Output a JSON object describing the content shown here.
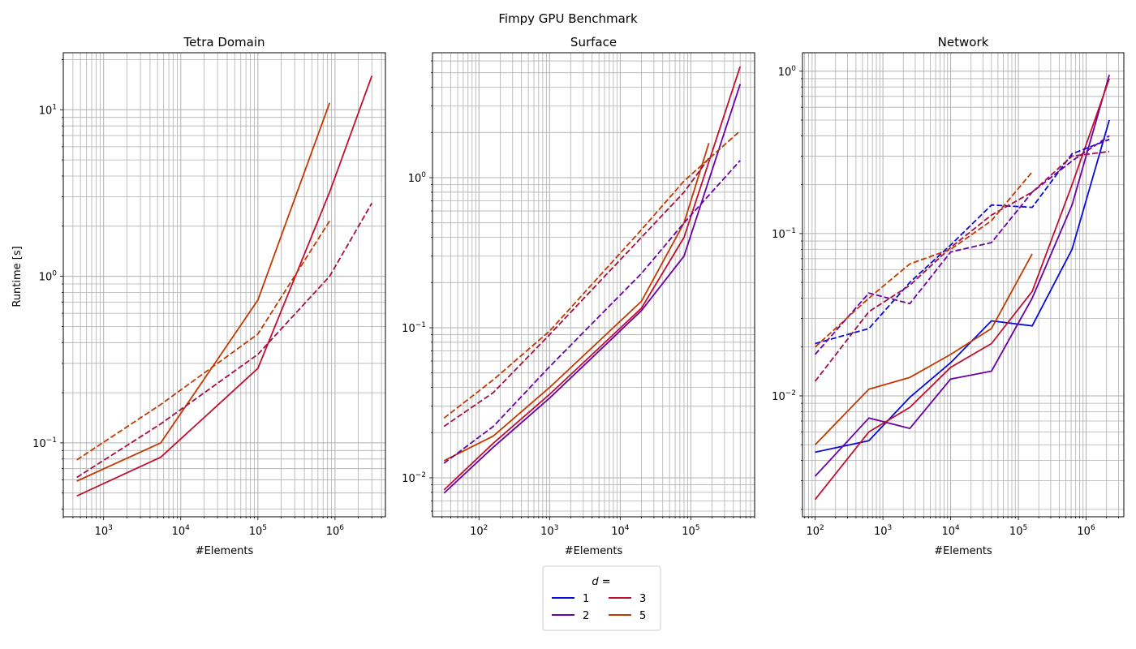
{
  "suptitle": "Fimpy GPU Benchmark",
  "ylabel": "Runtime [s]",
  "legend": {
    "title": "d =",
    "entries": [
      {
        "label": "1",
        "color": "#0b0bd6"
      },
      {
        "label": "2",
        "color": "#6a00a8"
      },
      {
        "label": "3",
        "color": "#c0102f"
      },
      {
        "label": "5",
        "color": "#c03a00"
      }
    ]
  },
  "chart_data": [
    {
      "type": "line",
      "title": "Tetra Domain",
      "xlabel": "#Elements",
      "ylabel": "Runtime [s]",
      "xscale": "log",
      "yscale": "log",
      "xlim": [
        300,
        4500000
      ],
      "ylim": [
        0.036,
        22
      ],
      "xticks": [
        {
          "v": 1000,
          "label": "10^3"
        },
        {
          "v": 10000,
          "label": "10^4"
        },
        {
          "v": 100000,
          "label": "10^5"
        },
        {
          "v": 1000000,
          "label": "10^6"
        }
      ],
      "yticks": [
        {
          "v": 0.1,
          "label": "10^-1"
        },
        {
          "v": 1,
          "label": "10^0"
        },
        {
          "v": 10,
          "label": "10^1"
        }
      ],
      "grid": true,
      "series": [
        {
          "d": "3",
          "style": "solid",
          "color": "#c0102f",
          "x": [
            450,
            5500,
            100000,
            850000,
            3000000
          ],
          "y": [
            0.048,
            0.082,
            0.28,
            3.2,
            16
          ]
        },
        {
          "d": "5",
          "style": "solid",
          "color": "#c03a00",
          "x": [
            450,
            5500,
            100000,
            850000
          ],
          "y": [
            0.059,
            0.1,
            0.72,
            11
          ]
        },
        {
          "d": "3",
          "style": "dashed",
          "color": "#a50d45",
          "x": [
            450,
            5500,
            100000,
            850000,
            3000000
          ],
          "y": [
            0.062,
            0.13,
            0.34,
            1.0,
            2.75
          ]
        },
        {
          "d": "5",
          "style": "dashed",
          "color": "#c03a00",
          "x": [
            450,
            5500,
            100000,
            850000
          ],
          "y": [
            0.079,
            0.17,
            0.45,
            2.15
          ]
        }
      ]
    },
    {
      "type": "line",
      "title": "Surface",
      "xlabel": "#Elements",
      "xscale": "log",
      "yscale": "log",
      "xlim": [
        22,
        800000
      ],
      "ylim": [
        0.0055,
        6.8
      ],
      "xticks": [
        {
          "v": 100,
          "label": "10^2"
        },
        {
          "v": 1000,
          "label": "10^3"
        },
        {
          "v": 10000,
          "label": "10^4"
        },
        {
          "v": 100000,
          "label": "10^5"
        }
      ],
      "yticks": [
        {
          "v": 0.01,
          "label": "10^-2"
        },
        {
          "v": 0.1,
          "label": "10^-1"
        },
        {
          "v": 1,
          "label": "10^0"
        }
      ],
      "grid": true,
      "series": [
        {
          "d": "2",
          "style": "solid",
          "color": "#6a00a8",
          "x": [
            32,
            160,
            1000,
            20000,
            80000,
            500000
          ],
          "y": [
            0.0079,
            0.016,
            0.034,
            0.13,
            0.3,
            4.2
          ]
        },
        {
          "d": "3",
          "style": "solid",
          "color": "#c0102f",
          "x": [
            32,
            160,
            1000,
            20000,
            80000,
            500000
          ],
          "y": [
            0.0083,
            0.017,
            0.036,
            0.135,
            0.4,
            5.5
          ]
        },
        {
          "d": "5",
          "style": "solid",
          "color": "#c03a00",
          "x": [
            32,
            160,
            1000,
            20000,
            80000,
            180000
          ],
          "y": [
            0.013,
            0.019,
            0.04,
            0.15,
            0.5,
            1.7
          ]
        },
        {
          "d": "2",
          "style": "dashed",
          "color": "#6a00a8",
          "x": [
            32,
            160,
            1000,
            20000,
            80000,
            500000
          ],
          "y": [
            0.0125,
            0.022,
            0.055,
            0.23,
            0.5,
            1.3
          ]
        },
        {
          "d": "3",
          "style": "dashed",
          "color": "#a50d45",
          "x": [
            32,
            160,
            1000,
            20000,
            80000,
            180000
          ],
          "y": [
            0.022,
            0.037,
            0.09,
            0.4,
            0.8,
            1.35
          ]
        },
        {
          "d": "5",
          "style": "dashed",
          "color": "#c03a00",
          "x": [
            32,
            160,
            1000,
            20000,
            80000,
            500000
          ],
          "y": [
            0.025,
            0.045,
            0.095,
            0.45,
            0.95,
            2.05
          ]
        }
      ]
    },
    {
      "type": "line",
      "title": "Network",
      "xlabel": "#Elements",
      "xscale": "log",
      "yscale": "log",
      "xlim": [
        65,
        3600000
      ],
      "ylim": [
        0.0018,
        1.3
      ],
      "xticks": [
        {
          "v": 100,
          "label": "10^2"
        },
        {
          "v": 1000,
          "label": "10^3"
        },
        {
          "v": 10000,
          "label": "10^4"
        },
        {
          "v": 100000,
          "label": "10^5"
        },
        {
          "v": 1000000,
          "label": "10^6"
        }
      ],
      "yticks": [
        {
          "v": 0.01,
          "label": "10^-2"
        },
        {
          "v": 0.1,
          "label": "10^-1"
        },
        {
          "v": 1,
          "label": "10^0"
        }
      ],
      "grid": true,
      "series": [
        {
          "d": "1",
          "style": "solid",
          "color": "#0b0bd6",
          "x": [
            100,
            620,
            2500,
            10000,
            40000,
            160000,
            620000,
            2200000
          ],
          "y": [
            0.0045,
            0.0053,
            0.0098,
            0.016,
            0.029,
            0.027,
            0.08,
            0.5
          ]
        },
        {
          "d": "2",
          "style": "solid",
          "color": "#6a00a8",
          "x": [
            100,
            620,
            2500,
            10000,
            40000,
            160000,
            620000,
            2200000
          ],
          "y": [
            0.0032,
            0.0073,
            0.0063,
            0.0127,
            0.0142,
            0.04,
            0.15,
            0.95
          ]
        },
        {
          "d": "3",
          "style": "solid",
          "color": "#c0102f",
          "x": [
            100,
            620,
            2500,
            10000,
            40000,
            160000,
            620000,
            2200000
          ],
          "y": [
            0.0023,
            0.006,
            0.0085,
            0.015,
            0.021,
            0.044,
            0.2,
            0.9
          ]
        },
        {
          "d": "5",
          "style": "solid",
          "color": "#c03a00",
          "x": [
            100,
            620,
            2500,
            10000,
            40000,
            160000
          ],
          "y": [
            0.005,
            0.011,
            0.013,
            0.018,
            0.026,
            0.075
          ]
        },
        {
          "d": "1",
          "style": "dashed",
          "color": "#0b0bd6",
          "x": [
            100,
            620,
            2500,
            10000,
            40000,
            160000,
            620000,
            2200000
          ],
          "y": [
            0.021,
            0.026,
            0.05,
            0.085,
            0.15,
            0.145,
            0.31,
            0.38
          ]
        },
        {
          "d": "2",
          "style": "dashed",
          "color": "#6a00a8",
          "x": [
            100,
            620,
            2500,
            10000,
            40000,
            160000,
            620000,
            2200000
          ],
          "y": [
            0.018,
            0.043,
            0.037,
            0.077,
            0.088,
            0.18,
            0.28,
            0.4
          ]
        },
        {
          "d": "3",
          "style": "dashed",
          "color": "#a50d45",
          "x": [
            100,
            620,
            2500,
            10000,
            40000,
            160000,
            620000,
            2200000
          ],
          "y": [
            0.0123,
            0.033,
            0.048,
            0.082,
            0.13,
            0.18,
            0.3,
            0.32
          ]
        },
        {
          "d": "5",
          "style": "dashed",
          "color": "#c03a00",
          "x": [
            100,
            620,
            2500,
            10000,
            40000,
            160000
          ],
          "y": [
            0.02,
            0.04,
            0.065,
            0.08,
            0.12,
            0.24
          ]
        }
      ]
    }
  ]
}
